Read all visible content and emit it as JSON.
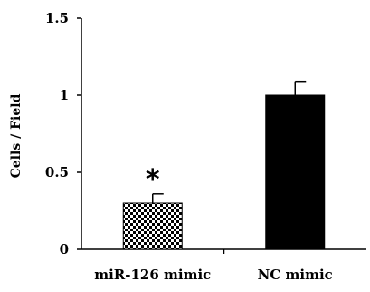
{
  "chart_data": {
    "type": "bar",
    "categories": [
      "miR-126 mimic",
      "NC mimic"
    ],
    "values": [
      0.3,
      1.0
    ],
    "errors": [
      0.06,
      0.09
    ],
    "bar_fills": [
      "checkered",
      "#000000"
    ],
    "ylabel": "Cells / Field",
    "ylim": [
      0,
      1.5
    ],
    "yticks": [
      0,
      0.5,
      1,
      1.5
    ],
    "ytick_labels": [
      "0",
      "0.5",
      "1",
      "1.5"
    ],
    "annotations": [
      {
        "category": "miR-126 mimic",
        "text": "*"
      }
    ],
    "grid": false,
    "legend": "none"
  }
}
